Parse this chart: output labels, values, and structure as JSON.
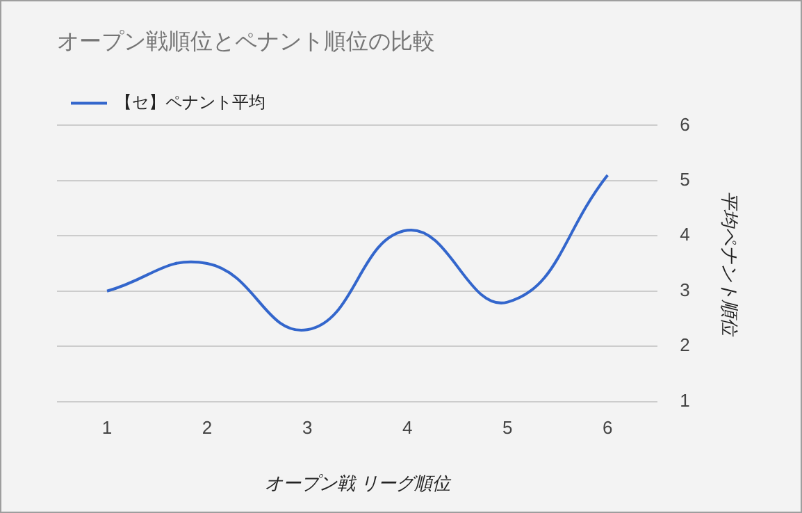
{
  "chart_data": {
    "type": "line",
    "title": "オープン戦順位とペナント順位の比較",
    "xlabel": "オープン戦 リーグ順位",
    "ylabel": "平均ペナント順位",
    "categories": [
      "1",
      "2",
      "3",
      "4",
      "5",
      "6"
    ],
    "series": [
      {
        "name": "【セ】ペナント平均",
        "color": "#3366cc",
        "values": [
          3.0,
          3.5,
          2.3,
          4.1,
          2.8,
          5.1
        ]
      }
    ],
    "ylim": [
      1,
      6
    ],
    "yticks": [
      1,
      2,
      3,
      4,
      5,
      6
    ],
    "grid": "y",
    "legend": "top left",
    "marker": "none"
  }
}
